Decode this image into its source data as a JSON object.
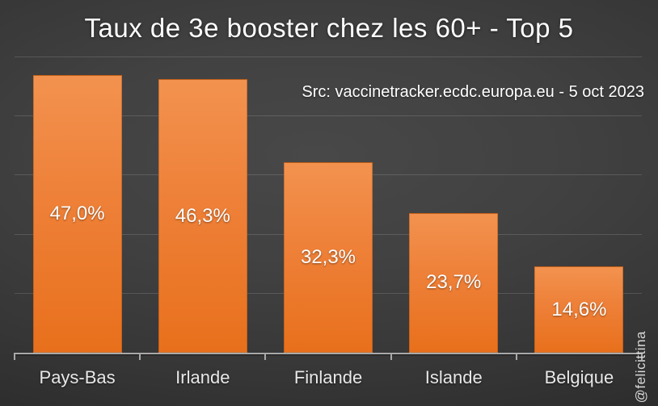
{
  "slide": {
    "title": "Taux de 3e booster chez les 60+ - Top 5",
    "source_note": "Src: vaccinetracker.ecdc.europa.eu - 5 oct 2023",
    "watermark": "@felicittina"
  },
  "colors": {
    "background_center": "#484848",
    "background_edge": "#222222",
    "bar_gradient_top": "#F2924F",
    "bar_gradient_bottom": "#E8701C",
    "bar_border": "#964B14",
    "gridline": "#4C4C4C",
    "axis_line": "#A9A9A9",
    "title_text": "#FFFFFF",
    "value_label_text": "#FFFFFF",
    "category_label_text": "#E8E8E8",
    "source_text": "#FFFFFF",
    "watermark_text": "#D9D9D9"
  },
  "chart_data": {
    "type": "bar",
    "title": "Taux de 3e booster chez les 60+ - Top 5",
    "categories": [
      "Pays-Bas",
      "Irlande",
      "Finlande",
      "Islande",
      "Belgique"
    ],
    "values": [
      47.0,
      46.3,
      32.3,
      23.7,
      14.6
    ],
    "value_labels": [
      "47,0%",
      "46,3%",
      "32,3%",
      "23,7%",
      "14,6%"
    ],
    "unit": "%",
    "xlabel": "",
    "ylabel": "",
    "ylim": [
      0,
      50
    ],
    "gridline_step": 10,
    "grid": true,
    "legend": false,
    "value_label_position": "inside-center",
    "y_axis_tick_labels_visible": false
  }
}
